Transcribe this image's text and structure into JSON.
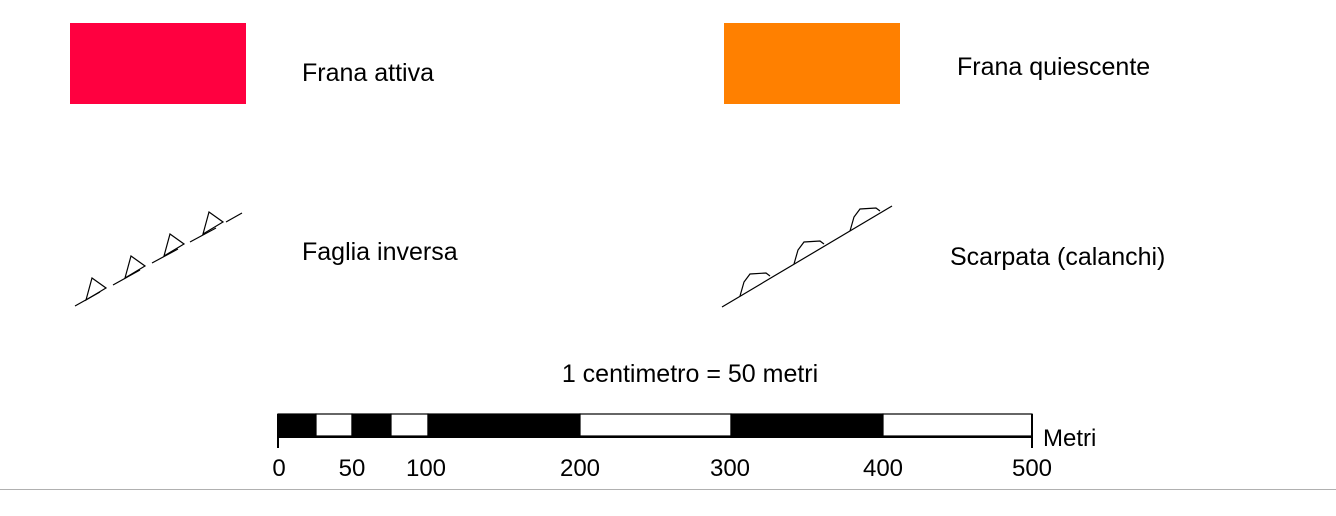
{
  "legend": {
    "active_landslide": {
      "label": "Frana attiva",
      "color": "#ff0040"
    },
    "quiescent_landslide": {
      "label": "Frana quiescente",
      "color": "#ff8000"
    },
    "reverse_fault": {
      "label": "Faglia inversa",
      "icon": "reverse-fault-symbol"
    },
    "scarp": {
      "label": "Scarpata (calanchi)",
      "icon": "scarp-symbol"
    }
  },
  "scale": {
    "text": "1 centimetro = 50 metri",
    "unit": "Metri",
    "ticks": [
      "0",
      "50",
      "100",
      "200",
      "300",
      "400",
      "500"
    ],
    "segments": [
      {
        "from": 0,
        "to": 25,
        "fill": "black"
      },
      {
        "from": 25,
        "to": 50,
        "fill": "white"
      },
      {
        "from": 50,
        "to": 75,
        "fill": "black"
      },
      {
        "from": 75,
        "to": 100,
        "fill": "white"
      },
      {
        "from": 100,
        "to": 200,
        "fill": "black"
      },
      {
        "from": 200,
        "to": 300,
        "fill": "white"
      },
      {
        "from": 300,
        "to": 400,
        "fill": "black"
      },
      {
        "from": 400,
        "to": 500,
        "fill": "white"
      }
    ]
  }
}
